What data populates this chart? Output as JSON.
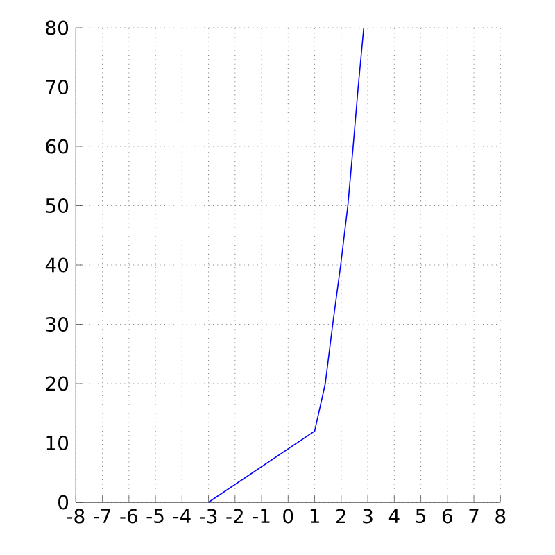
{
  "chart_data": {
    "type": "line",
    "x": [
      -3,
      1,
      1.4,
      1.68,
      1.98,
      2.25,
      2.45,
      2.64,
      2.85
    ],
    "series": [
      {
        "color": "#0000ff",
        "values": [
          0,
          12,
          20,
          30,
          40,
          50,
          60,
          70,
          80
        ]
      }
    ],
    "xlim": [
      -8,
      8
    ],
    "xticks": [
      -8,
      -7,
      -6,
      -5,
      -4,
      -3,
      -2,
      -1,
      0,
      1,
      2,
      3,
      4,
      5,
      6,
      7,
      8
    ],
    "ylim": [
      0,
      80
    ],
    "yticks": [
      0,
      10,
      20,
      30,
      40,
      50,
      60,
      70,
      80
    ],
    "grid": true,
    "marker": "none",
    "line_style": "solid"
  }
}
